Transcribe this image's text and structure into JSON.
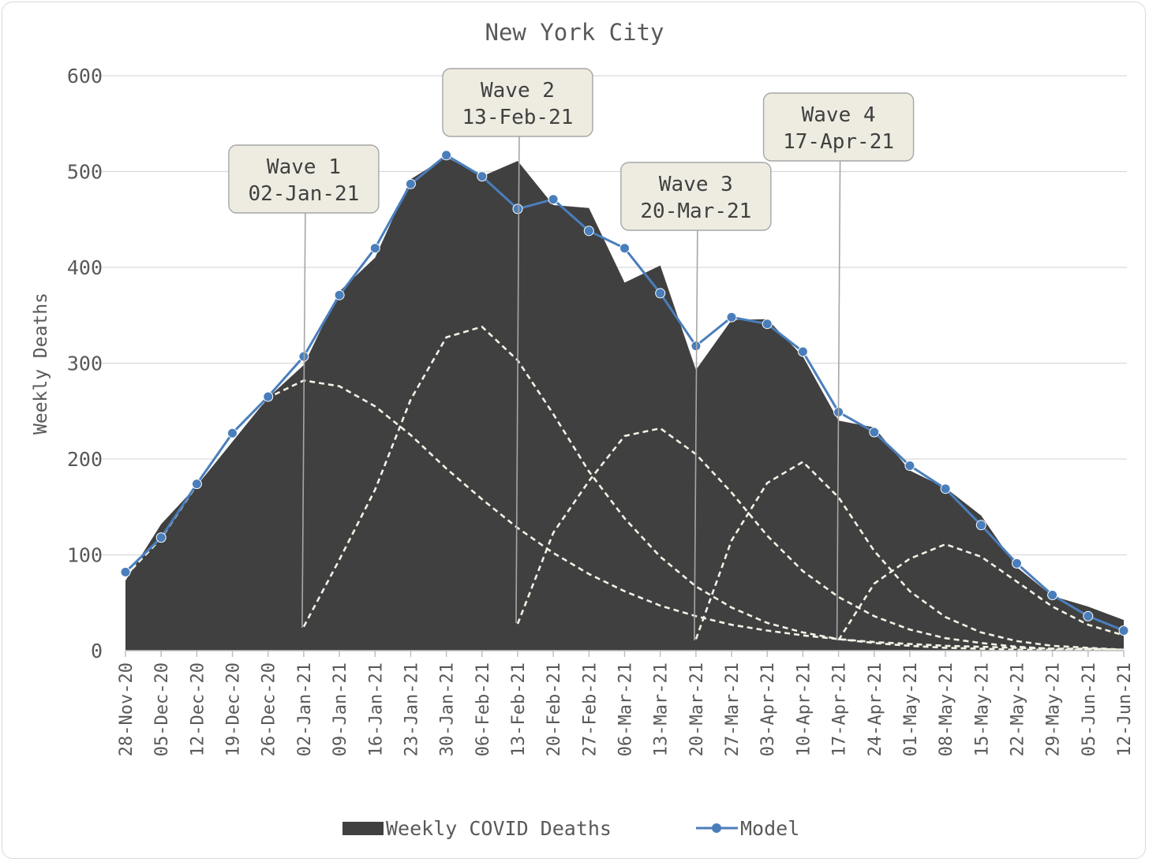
{
  "chart_data": {
    "type": "area",
    "title": "New York City",
    "ylabel": "Weekly Deaths",
    "xlabel": "",
    "ylim": [
      0,
      600
    ],
    "yticks": [
      0,
      100,
      200,
      300,
      400,
      500,
      600
    ],
    "grid": true,
    "legend_position": "bottom",
    "categories": [
      "28-Nov-20",
      "05-Dec-20",
      "12-Dec-20",
      "19-Dec-20",
      "26-Dec-20",
      "02-Jan-21",
      "09-Jan-21",
      "16-Jan-21",
      "23-Jan-21",
      "30-Jan-21",
      "06-Feb-21",
      "13-Feb-21",
      "20-Feb-21",
      "27-Feb-21",
      "06-Mar-21",
      "13-Mar-21",
      "20-Mar-21",
      "27-Mar-21",
      "03-Apr-21",
      "10-Apr-21",
      "17-Apr-21",
      "24-Apr-21",
      "01-May-21",
      "08-May-21",
      "15-May-21",
      "22-May-21",
      "29-May-21",
      "05-Jun-21",
      "12-Jun-21"
    ],
    "series": [
      {
        "name": "Weekly COVID Deaths",
        "kind": "area",
        "color": "#404040",
        "values": [
          73,
          132,
          172,
          218,
          264,
          298,
          375,
          410,
          492,
          515,
          495,
          511,
          465,
          462,
          384,
          402,
          293,
          345,
          346,
          307,
          240,
          233,
          188,
          170,
          141,
          87,
          57,
          46,
          32
        ]
      },
      {
        "name": "Model",
        "kind": "line",
        "color": "#4a7ebb",
        "values": [
          82,
          118,
          174,
          227,
          265,
          307,
          371,
          420,
          487,
          517,
          495,
          461,
          471,
          438,
          420,
          373,
          318,
          348,
          341,
          312,
          249,
          228,
          193,
          169,
          131,
          91,
          58,
          36,
          21
        ]
      }
    ],
    "components": [
      {
        "start": "28-Nov-20",
        "color": "#f2f2e6",
        "style": "dashed",
        "values": [
          78,
          117,
          173,
          226,
          264,
          282,
          276,
          255,
          225,
          190,
          158,
          128,
          102,
          80,
          62,
          47,
          36,
          27,
          21,
          16,
          12,
          9,
          7,
          5,
          4,
          3,
          2,
          2,
          1
        ]
      },
      {
        "start": "02-Jan-21",
        "color": "#f2f2e6",
        "style": "dashed",
        "values": [
          25,
          95,
          168,
          262,
          327,
          338,
          303,
          247,
          187,
          138,
          98,
          67,
          45,
          29,
          19,
          12,
          8,
          5,
          3,
          2,
          1,
          1,
          1,
          0
        ]
      },
      {
        "start": "13-Feb-21",
        "color": "#f2f2e6",
        "style": "dashed",
        "values": [
          28,
          123,
          177,
          224,
          232,
          205,
          165,
          120,
          83,
          56,
          36,
          22,
          13,
          8,
          4,
          2,
          1,
          0
        ]
      },
      {
        "start": "20-Mar-21",
        "color": "#f2f2e6",
        "style": "dashed",
        "values": [
          12,
          115,
          175,
          197,
          160,
          104,
          62,
          35,
          19,
          10,
          5,
          3,
          1
        ]
      },
      {
        "start": "17-Apr-21",
        "color": "#f2f2e6",
        "style": "dashed",
        "values": [
          11,
          70,
          96,
          111,
          98,
          72,
          46,
          27,
          16
        ]
      }
    ],
    "annotations": [
      {
        "line1": "Wave 1",
        "line2": "02-Jan-21",
        "x": "02-Jan-21"
      },
      {
        "line1": "Wave 2",
        "line2": "13-Feb-21",
        "x": "13-Feb-21"
      },
      {
        "line1": "Wave 3",
        "line2": "20-Mar-21",
        "x": "20-Mar-21"
      },
      {
        "line1": "Wave 4",
        "line2": "17-Apr-21",
        "x": "17-Apr-21"
      }
    ]
  }
}
